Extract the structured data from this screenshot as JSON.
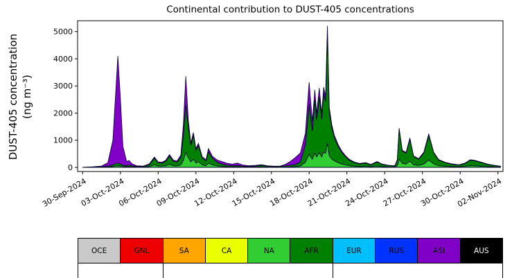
{
  "title": "Continental contribution to DUST-405 concentrations",
  "y_axis": {
    "label_line1": "DUST-405 concentration",
    "label_line2": "(ng m⁻³)",
    "ticks": [
      0,
      1000,
      2000,
      3000,
      4000,
      5000
    ]
  },
  "x_axis": {
    "tick_days": [
      0,
      3,
      6,
      9,
      12,
      15,
      18,
      21,
      24,
      27,
      30,
      33
    ],
    "tick_labels": [
      "30-Sep-2024",
      "03-Oct-2024",
      "06-Oct-2024",
      "09-Oct-2024",
      "12-Oct-2024",
      "15-Oct-2024",
      "18-Oct-2024",
      "21-Oct-2024",
      "24-Oct-2024",
      "27-Oct-2024",
      "30-Oct-2024",
      "02-Nov-2024"
    ]
  },
  "legend": {
    "items": [
      {
        "label": "OCE",
        "color": "#c9c9c9",
        "text_color": "#000000"
      },
      {
        "label": "GNL",
        "color": "#ee0000",
        "text_color": "#000000"
      },
      {
        "label": "SA",
        "color": "#ffa500",
        "text_color": "#000000"
      },
      {
        "label": "CA",
        "color": "#eaff00",
        "text_color": "#000000"
      },
      {
        "label": "NA",
        "color": "#32cd32",
        "text_color": "#000000"
      },
      {
        "label": "AFR",
        "color": "#008000",
        "text_color": "#000000"
      },
      {
        "label": "EUR",
        "color": "#00bfff",
        "text_color": "#000000"
      },
      {
        "label": "RUS",
        "color": "#0033ff",
        "text_color": "#000000"
      },
      {
        "label": "ASI",
        "color": "#8000c8",
        "text_color": "#000000"
      },
      {
        "label": "AUS",
        "color": "#000000",
        "text_color": "#ffffff"
      }
    ]
  },
  "chart_data": {
    "type": "area",
    "stacked": true,
    "title": "Continental contribution to DUST-405 concentrations",
    "xlabel": "",
    "ylabel": "DUST-405 concentration (ng m⁻³)",
    "x_unit": "days since 30-Sep-2024",
    "xlim": [
      -0.4,
      33.4
    ],
    "ylim": [
      -150,
      5400
    ],
    "grid": false,
    "legend_position": "bottom",
    "x": [
      0.0,
      0.8,
      1.5,
      2.0,
      2.4,
      2.65,
      2.8,
      3.0,
      3.2,
      3.5,
      3.7,
      3.9,
      4.3,
      4.8,
      5.3,
      5.7,
      6.0,
      6.3,
      6.6,
      6.9,
      7.2,
      7.5,
      7.8,
      8.0,
      8.2,
      8.4,
      8.6,
      8.8,
      9.0,
      9.2,
      9.5,
      9.8,
      10.0,
      10.3,
      10.7,
      11.1,
      11.5,
      11.9,
      12.3,
      12.7,
      13.2,
      13.7,
      14.2,
      14.7,
      15.2,
      15.7,
      16.1,
      16.5,
      16.9,
      17.3,
      17.7,
      18.0,
      18.25,
      18.45,
      18.6,
      18.8,
      19.0,
      19.15,
      19.3,
      19.45,
      19.6,
      19.8,
      20.0,
      20.3,
      20.6,
      20.9,
      21.2,
      21.6,
      22.0,
      22.5,
      22.9,
      23.4,
      23.8,
      24.3,
      24.8,
      25.0,
      25.15,
      25.4,
      25.7,
      26.0,
      26.3,
      26.7,
      27.1,
      27.5,
      27.9,
      28.3,
      28.8,
      29.3,
      29.9,
      30.4,
      30.8,
      31.2,
      31.7,
      32.2,
      32.7,
      33.2
    ],
    "series": [
      {
        "name": "OCE",
        "color": "#c9c9c9",
        "values": 5
      },
      {
        "name": "GNL",
        "color": "#ee0000",
        "values": 0
      },
      {
        "name": "SA",
        "color": "#ffa500",
        "values": 0
      },
      {
        "name": "CA",
        "color": "#eaff00",
        "values": 0
      },
      {
        "name": "NA",
        "color": "#32cd32",
        "values": [
          0,
          3,
          6,
          15,
          30,
          50,
          55,
          45,
          25,
          20,
          25,
          15,
          8,
          8,
          25,
          90,
          45,
          45,
          60,
          110,
          60,
          50,
          90,
          250,
          550,
          350,
          200,
          300,
          160,
          210,
          90,
          60,
          150,
          90,
          50,
          30,
          20,
          15,
          20,
          12,
          8,
          10,
          18,
          10,
          8,
          9,
          14,
          18,
          25,
          45,
          180,
          480,
          300,
          520,
          380,
          540,
          380,
          560,
          520,
          880,
          420,
          300,
          240,
          170,
          120,
          90,
          60,
          40,
          30,
          35,
          22,
          45,
          25,
          15,
          12,
          60,
          300,
          140,
          120,
          230,
          90,
          70,
          120,
          270,
          120,
          60,
          40,
          28,
          20,
          35,
          60,
          55,
          40,
          25,
          15,
          8
        ]
      },
      {
        "name": "AFR",
        "color": "#008000",
        "values": [
          0,
          8,
          15,
          30,
          60,
          90,
          95,
          80,
          50,
          45,
          60,
          40,
          20,
          18,
          70,
          240,
          120,
          110,
          160,
          300,
          160,
          140,
          280,
          900,
          1750,
          1100,
          600,
          880,
          470,
          590,
          260,
          170,
          420,
          240,
          130,
          85,
          55,
          40,
          50,
          30,
          22,
          28,
          55,
          28,
          20,
          24,
          38,
          55,
          75,
          150,
          650,
          1850,
          1050,
          1950,
          1350,
          2050,
          1400,
          2150,
          1900,
          4050,
          1600,
          1150,
          850,
          600,
          420,
          290,
          200,
          130,
          95,
          115,
          70,
          145,
          80,
          48,
          38,
          200,
          1080,
          450,
          400,
          800,
          300,
          230,
          400,
          900,
          400,
          200,
          130,
          90,
          62,
          110,
          200,
          180,
          130,
          80,
          50,
          28
        ]
      },
      {
        "name": "EUR",
        "color": "#00bfff",
        "values": 0
      },
      {
        "name": "RUS",
        "color": "#0033ff",
        "values": 0
      },
      {
        "name": "ASI",
        "color": "#8000c8",
        "values": [
          0,
          6,
          25,
          120,
          900,
          2800,
          3950,
          2400,
          700,
          150,
          165,
          80,
          25,
          18,
          30,
          50,
          35,
          30,
          40,
          60,
          45,
          40,
          80,
          400,
          1050,
          250,
          90,
          100,
          60,
          80,
          45,
          40,
          120,
          80,
          85,
          95,
          70,
          60,
          85,
          45,
          28,
          30,
          25,
          16,
          12,
          14,
          55,
          140,
          260,
          330,
          420,
          800,
          350,
          380,
          250,
          330,
          200,
          240,
          200,
          280,
          180,
          120,
          90,
          70,
          50,
          40,
          30,
          22,
          18,
          20,
          15,
          22,
          15,
          10,
          8,
          20,
          60,
          35,
          30,
          50,
          25,
          20,
          30,
          55,
          30,
          20,
          15,
          12,
          10,
          15,
          20,
          18,
          15,
          10,
          8,
          5
        ]
      },
      {
        "name": "AUS",
        "color": "#000000",
        "values": 0
      }
    ],
    "x_tick_days": [
      0,
      3,
      6,
      9,
      12,
      15,
      18,
      21,
      24,
      27,
      30,
      33
    ],
    "x_tick_labels": [
      "30-Sep-2024",
      "03-Oct-2024",
      "06-Oct-2024",
      "09-Oct-2024",
      "12-Oct-2024",
      "15-Oct-2024",
      "18-Oct-2024",
      "21-Oct-2024",
      "24-Oct-2024",
      "27-Oct-2024",
      "30-Oct-2024",
      "02-Nov-2024"
    ]
  }
}
